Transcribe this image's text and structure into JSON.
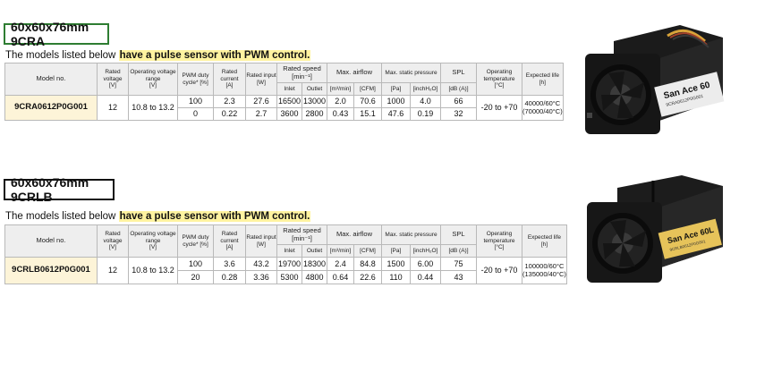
{
  "sections": [
    {
      "title": "60x60x76mm 9CRA",
      "title_border_color": "#2e7d32",
      "lead_prefix": "The models listed below ",
      "lead_highlight": "have a pulse sensor with PWM control.",
      "headers": {
        "model": "Model no.",
        "rated_voltage": "Rated voltage",
        "rated_voltage_unit": "[V]",
        "op_voltage": "Operating voltage range",
        "op_voltage_unit": "[V]",
        "pwm": "PWM duty",
        "pwm_unit": "cycle* [%]",
        "current": "Rated current",
        "current_unit": "[A]",
        "input": "Rated input",
        "input_unit": "[W]",
        "speed": "Rated speed",
        "speed_unit": "[min⁻¹]",
        "speed_inlet": "Inlet",
        "speed_outlet": "Outlet",
        "airflow": "Max. airflow",
        "airflow_unit1": "[m³/min]",
        "airflow_unit2": "[CFM]",
        "pressure": "Max. static pressure",
        "pressure_unit1": "[Pa]",
        "pressure_unit2": "[inchH₂O]",
        "spl": "SPL",
        "spl_unit": "[dB (A)]",
        "temp": "Operating temperature",
        "temp_unit": "[°C]",
        "life": "Expected life",
        "life_unit": "[h]"
      },
      "model": "9CRA0612P0G001",
      "rated_voltage": "12",
      "op_voltage": "10.8 to 13.2",
      "rows": [
        {
          "pwm": "100",
          "current": "2.3",
          "input": "27.6",
          "inlet": "16500",
          "outlet": "13000",
          "m3": "2.0",
          "cfm": "70.6",
          "pa": "1000",
          "inh2o": "4.0",
          "spl": "66"
        },
        {
          "pwm": "0",
          "current": "0.22",
          "input": "2.7",
          "inlet": "3600",
          "outlet": "2800",
          "m3": "0.43",
          "cfm": "15.1",
          "pa": "47.6",
          "inh2o": "0.19",
          "spl": "32"
        }
      ],
      "temp": "-20 to +70",
      "life1": "40000/60°C",
      "life2": "(70000/40°C)",
      "product_label": "San Ace 60",
      "product_small_label": "9CRA0612P0G001"
    },
    {
      "title": "60x60x76mm 9CRLB",
      "title_border_color": "#111111",
      "lead_prefix": "The models listed below ",
      "lead_highlight": "have a pulse sensor with PWM control.",
      "headers": {
        "model": "Model no.",
        "rated_voltage": "Rated voltage",
        "rated_voltage_unit": "[V]",
        "op_voltage": "Operating voltage range",
        "op_voltage_unit": "[V]",
        "pwm": "PWM duty",
        "pwm_unit": "cycle* [%]",
        "current": "Rated current",
        "current_unit": "[A]",
        "input": "Rated input",
        "input_unit": "[W]",
        "speed": "Rated speed",
        "speed_unit": "[min⁻¹]",
        "speed_inlet": "Inlet",
        "speed_outlet": "Outlet",
        "airflow": "Max. airflow",
        "airflow_unit1": "[m³/min]",
        "airflow_unit2": "[CFM]",
        "pressure": "Max. static pressure",
        "pressure_unit1": "[Pa]",
        "pressure_unit2": "[inchH₂O]",
        "spl": "SPL",
        "spl_unit": "[dB (A)]",
        "temp": "Operating temperature",
        "temp_unit": "[°C]",
        "life": "Expected life",
        "life_unit": "[h]"
      },
      "model": "9CRLB0612P0G001",
      "rated_voltage": "12",
      "op_voltage": "10.8 to 13.2",
      "rows": [
        {
          "pwm": "100",
          "current": "3.6",
          "input": "43.2",
          "inlet": "19700",
          "outlet": "18300",
          "m3": "2.4",
          "cfm": "84.8",
          "pa": "1500",
          "inh2o": "6.00",
          "spl": "75"
        },
        {
          "pwm": "20",
          "current": "0.28",
          "input": "3.36",
          "inlet": "5300",
          "outlet": "4800",
          "m3": "0.64",
          "cfm": "22.6",
          "pa": "110",
          "inh2o": "0.44",
          "spl": "43"
        }
      ],
      "temp": "-20 to +70",
      "life1": "100000/60°C",
      "life2": "(135000/40°C)",
      "product_label": "San Ace 60L",
      "product_small_label": "9CRLB0612P0G001"
    }
  ]
}
